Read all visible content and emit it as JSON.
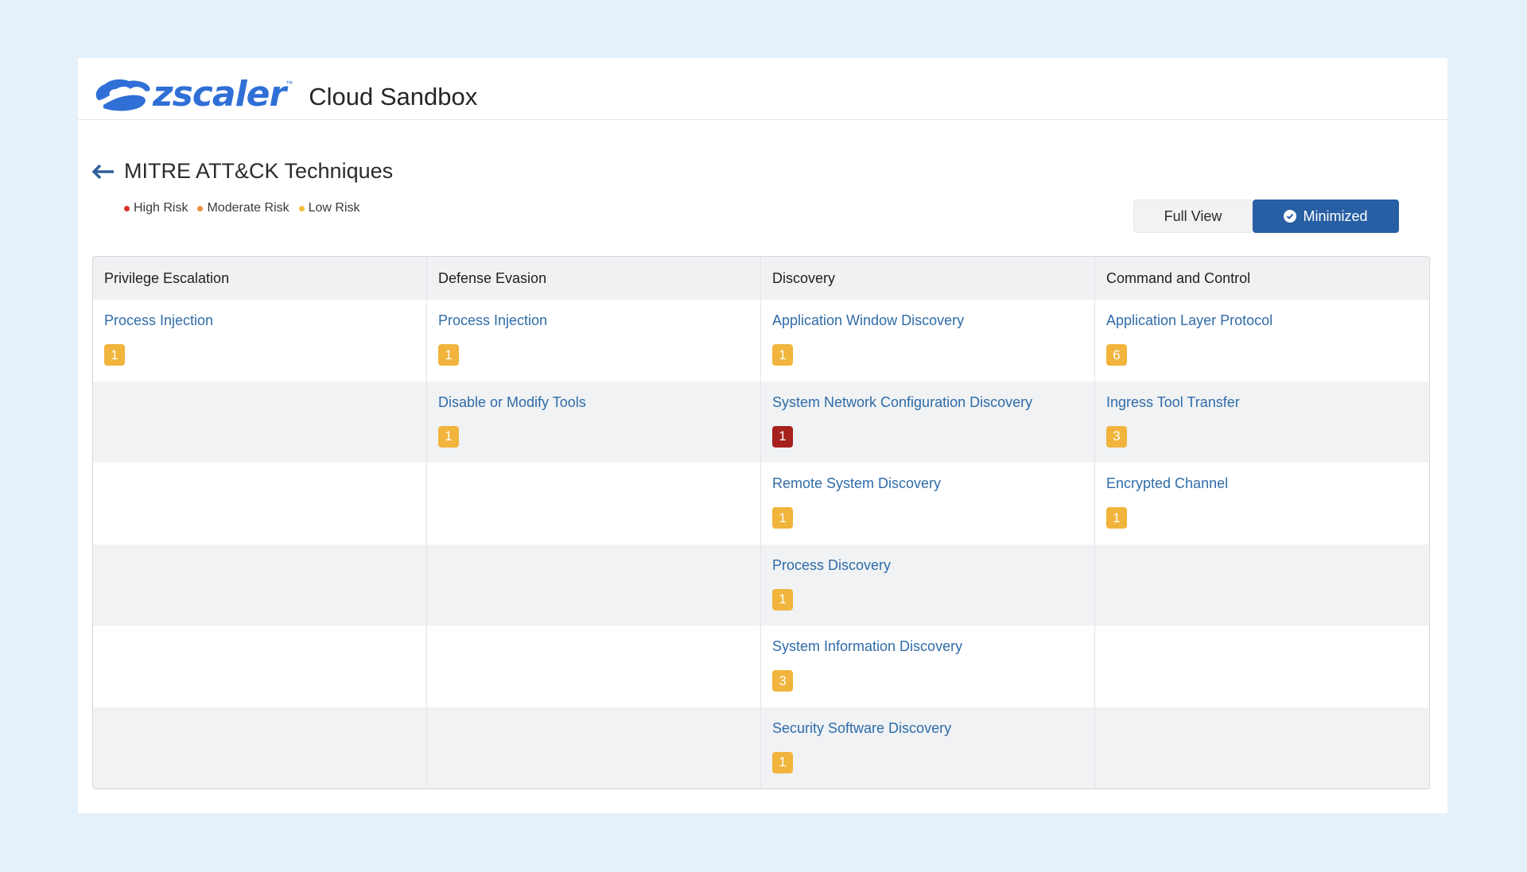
{
  "header": {
    "logo_text": "zscaler",
    "logo_tm": "™",
    "app_title": "Cloud Sandbox"
  },
  "page": {
    "title": "MITRE ATT&CK Techniques",
    "back_icon": "arrow-left-icon"
  },
  "legend": [
    {
      "label": "High Risk",
      "color": "#d7332a"
    },
    {
      "label": "Moderate Risk",
      "color": "#ee8f3a"
    },
    {
      "label": "Low Risk",
      "color": "#f2bd3d"
    }
  ],
  "view_toggle": {
    "full_label": "Full View",
    "minimized_label": "Minimized",
    "selected": "Minimized"
  },
  "colors": {
    "badge_low": "#f1b43c",
    "badge_high": "#a6211d",
    "accent": "#285ea3",
    "link": "#2f6ca8"
  },
  "columns": [
    "Privilege Escalation",
    "Defense Evasion",
    "Discovery",
    "Command and Control"
  ],
  "rows": [
    [
      {
        "name": "Process Injection",
        "count": "1",
        "risk": "low"
      },
      {
        "name": "Process Injection",
        "count": "1",
        "risk": "low"
      },
      {
        "name": "Application Window Discovery",
        "count": "1",
        "risk": "low"
      },
      {
        "name": "Application Layer Protocol",
        "count": "6",
        "risk": "low"
      }
    ],
    [
      null,
      {
        "name": "Disable or Modify Tools",
        "count": "1",
        "risk": "low"
      },
      {
        "name": "System Network Configuration Discovery",
        "count": "1",
        "risk": "high"
      },
      {
        "name": "Ingress Tool Transfer",
        "count": "3",
        "risk": "low"
      }
    ],
    [
      null,
      null,
      {
        "name": "Remote System Discovery",
        "count": "1",
        "risk": "low"
      },
      {
        "name": "Encrypted Channel",
        "count": "1",
        "risk": "low"
      }
    ],
    [
      null,
      null,
      {
        "name": "Process Discovery",
        "count": "1",
        "risk": "low"
      },
      null
    ],
    [
      null,
      null,
      {
        "name": "System Information Discovery",
        "count": "3",
        "risk": "low"
      },
      null
    ],
    [
      null,
      null,
      {
        "name": "Security Software Discovery",
        "count": "1",
        "risk": "low"
      },
      null
    ]
  ]
}
